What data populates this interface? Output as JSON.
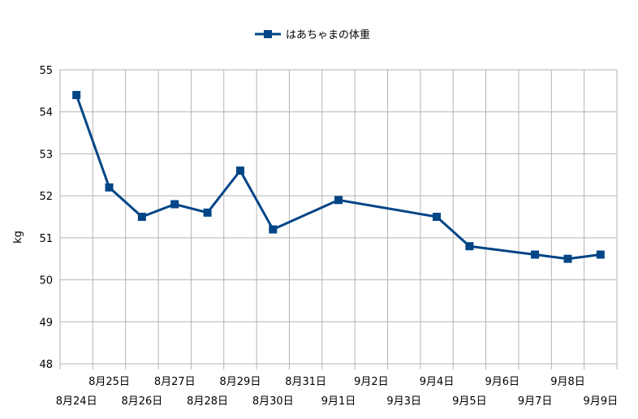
{
  "chart_data": {
    "type": "line",
    "title": "",
    "xlabel": "",
    "ylabel": "kg",
    "ylim": [
      48,
      55
    ],
    "yticks": [
      48,
      49,
      50,
      51,
      52,
      53,
      54,
      55
    ],
    "grid": true,
    "legend_position": "top-center",
    "xtick_labels": [
      "8月24日",
      "8月25日",
      "8月26日",
      "8月27日",
      "8月28日",
      "8月29日",
      "8月30日",
      "8月31日",
      "9月1日",
      "9月2日",
      "9月3日",
      "9月4日",
      "9月5日",
      "9月6日",
      "9月7日",
      "9月8日",
      "9月9日"
    ],
    "series": [
      {
        "name": "はあちゃまの体重",
        "color": "#004586",
        "x": [
          "8月24日",
          "8月25日",
          "8月26日",
          "8月27日",
          "8月28日",
          "8月29日",
          "8月30日",
          "9月1日",
          "9月4日",
          "9月5日",
          "9月7日",
          "9月8日",
          "9月9日"
        ],
        "values": [
          54.4,
          52.2,
          51.5,
          51.8,
          51.6,
          52.6,
          51.2,
          51.9,
          51.5,
          50.8,
          50.6,
          50.5,
          50.6
        ]
      }
    ]
  }
}
